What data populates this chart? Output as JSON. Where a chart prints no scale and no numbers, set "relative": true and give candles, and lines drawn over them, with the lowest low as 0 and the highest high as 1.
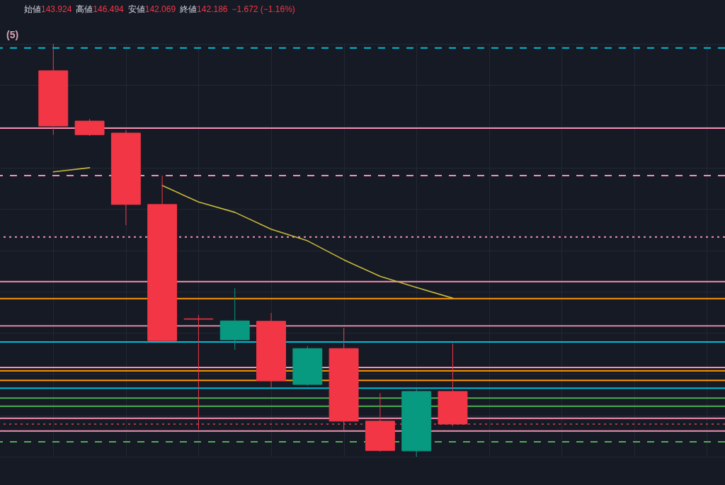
{
  "chart_data": {
    "type": "candlestick",
    "relative": true,
    "grid": true,
    "tick_labels": false,
    "categories": [
      null,
      null,
      null,
      null,
      null,
      null,
      null,
      null,
      null,
      null,
      null,
      null
    ],
    "ohlc": [
      [
        0.935,
        1.0,
        0.78,
        0.801
      ],
      [
        0.813,
        0.818,
        0.777,
        0.78
      ],
      [
        0.784,
        0.791,
        0.561,
        0.611
      ],
      [
        0.611,
        0.681,
        0.278,
        0.281
      ],
      [
        0.334,
        0.343,
        0.067,
        0.333
      ],
      [
        0.283,
        0.408,
        0.259,
        0.329
      ],
      [
        0.328,
        0.348,
        0.168,
        0.184
      ],
      [
        0.175,
        0.268,
        0.172,
        0.262
      ],
      [
        0.262,
        0.312,
        0.063,
        0.086
      ],
      [
        0.086,
        0.154,
        0.012,
        0.015
      ],
      [
        0.014,
        0.166,
        0.0,
        0.158
      ],
      [
        0.158,
        0.275,
        0.074,
        0.079
      ]
    ],
    "colors": [
      "#f23645",
      "#f23645",
      "#f23645",
      "#f23645",
      "#f23645",
      "#089981",
      "#f23645",
      "#089981",
      "#f23645",
      "#f23645",
      "#089981",
      "#f23645"
    ],
    "series": [
      {
        "type": "line",
        "color": "#c8b93a",
        "values": [
          0.69,
          0.7,
          null,
          0.657,
          0.617,
          0.592,
          0.551,
          0.523,
          0.477,
          0.437,
          0.41,
          0.384
        ]
      }
    ],
    "ref_lines": [
      {
        "axis": "y",
        "value": 0.99,
        "color": "#00bcd4",
        "line_style": "dashed"
      },
      {
        "axis": "y",
        "value": 0.796,
        "color": "#f48fb1",
        "line_style": "solid"
      },
      {
        "axis": "y",
        "value": 0.681,
        "color": "#f48fb1",
        "line_style": "dashed"
      },
      {
        "axis": "y",
        "value": 0.532,
        "color": "#f48fb1",
        "line_style": "dotted"
      },
      {
        "axis": "y",
        "value": 0.424,
        "color": "#f48fb1",
        "line_style": "solid"
      },
      {
        "axis": "y",
        "value": 0.383,
        "color": "#ff9800",
        "line_style": "solid"
      },
      {
        "axis": "y",
        "value": 0.317,
        "color": "#d88aa3",
        "line_style": "solid"
      },
      {
        "axis": "y",
        "value": 0.278,
        "color": "#00bcd4",
        "line_style": "solid"
      },
      {
        "axis": "y",
        "value": 0.216,
        "color": "#f48fb1",
        "line_style": "solid"
      },
      {
        "axis": "y",
        "value": 0.208,
        "color": "#ff9800",
        "line_style": "solid"
      },
      {
        "axis": "y",
        "value": 0.185,
        "color": "#ff9800",
        "line_style": "solid"
      },
      {
        "axis": "y",
        "value": 0.166,
        "color": "#00bcd4",
        "line_style": "solid"
      },
      {
        "axis": "y",
        "value": 0.142,
        "color": "#4caf50",
        "line_style": "solid"
      },
      {
        "axis": "y",
        "value": 0.122,
        "color": "#4caf50",
        "line_style": "solid"
      },
      {
        "axis": "y",
        "value": 0.093,
        "color": "#f48fb1",
        "line_style": "solid"
      },
      {
        "axis": "y",
        "value": 0.079,
        "color": "#a33a45",
        "line_style": "dotted"
      },
      {
        "axis": "y",
        "value": 0.062,
        "color": "#f48fb1",
        "line_style": "solid"
      },
      {
        "axis": "y",
        "value": 0.036,
        "color": "#4caf50",
        "line_style": "dashed"
      }
    ],
    "annotations": [
      "始値",
      "143.924",
      "高値",
      "146.494",
      "安値",
      "142.069",
      "終値",
      "142.186",
      "−1.672 (−1.16%)",
      "(5)"
    ]
  }
}
